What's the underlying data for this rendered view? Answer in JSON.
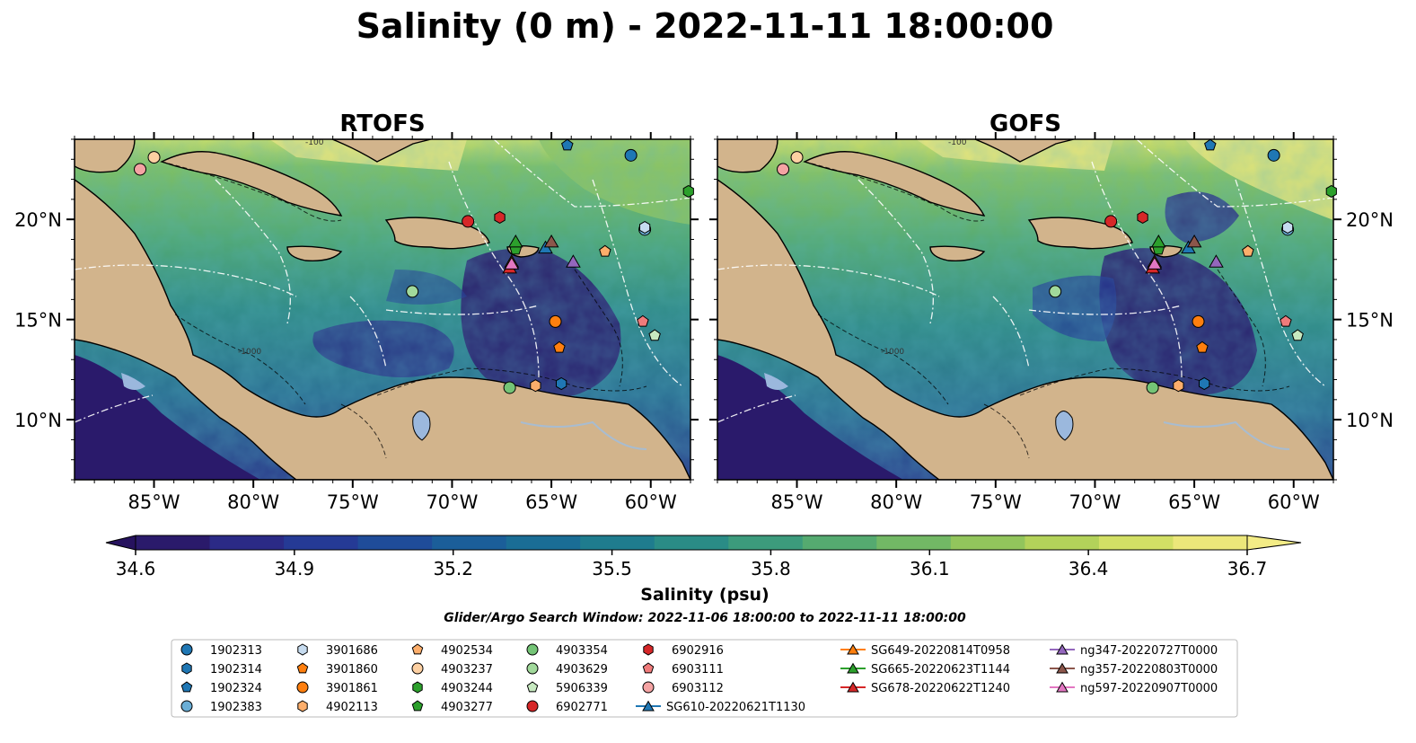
{
  "figure": {
    "title": "Salinity (0 m) - 2022-11-11 18:00:00",
    "search_window": "Glider/Argo Search Window: 2022-11-06 18:00:00 to 2022-11-11 18:00:00"
  },
  "panels": [
    {
      "title": "RTOFS"
    },
    {
      "title": "GOFS"
    }
  ],
  "axes": {
    "lon_ticks": [
      "85°W",
      "80°W",
      "75°W",
      "70°W",
      "65°W",
      "60°W"
    ],
    "lat_ticks": [
      "20°N",
      "15°N",
      "10°N"
    ],
    "lon_range": [
      -89,
      -58
    ],
    "lat_range": [
      7,
      24
    ]
  },
  "contour_labels": [
    "-100",
    "-1000"
  ],
  "colorbar": {
    "label": "Salinity (psu)",
    "ticks": [
      "34.6",
      "34.9",
      "35.2",
      "35.5",
      "35.8",
      "36.1",
      "36.4",
      "36.7"
    ],
    "min": 34.6,
    "max": 36.7,
    "extend": "both",
    "colors": [
      "#2a1a6b",
      "#2b2a86",
      "#253a95",
      "#1f4c99",
      "#1b5e99",
      "#1a6d95",
      "#1f7c8e",
      "#2a8c86",
      "#3c9b7c",
      "#55aa70",
      "#72b865",
      "#92c55c",
      "#b3d25a",
      "#d2df65",
      "#ece77a"
    ]
  },
  "colors": {
    "land": "#d2b48c",
    "lakes": "#9bb8dd",
    "rivers": "#a8bcd0"
  },
  "floats": [
    {
      "id": "1902313",
      "marker": "circle",
      "color": "#1f77b4",
      "lon": -61,
      "lat": 23.2
    },
    {
      "id": "1902314",
      "marker": "hexagon",
      "color": "#1f77b4",
      "lon": -64.5,
      "lat": 11.8
    },
    {
      "id": "1902324",
      "marker": "pentagon",
      "color": "#1f77b4",
      "lon": -64.2,
      "lat": 23.7
    },
    {
      "id": "1902383",
      "marker": "circle",
      "color": "#6aaed6",
      "lon": -60.3,
      "lat": 19.5
    },
    {
      "id": "3901686",
      "marker": "hexagon",
      "color": "#c6dbef",
      "lon": -60.3,
      "lat": 19.6
    },
    {
      "id": "3901860",
      "marker": "pentagon",
      "color": "#ff7f0e",
      "lon": -64.6,
      "lat": 13.6
    },
    {
      "id": "3901861",
      "marker": "circle",
      "color": "#ff7f0e",
      "lon": -64.8,
      "lat": 14.9
    },
    {
      "id": "4902113",
      "marker": "hexagon",
      "color": "#fdae6b",
      "lon": -65.8,
      "lat": 11.7
    },
    {
      "id": "4902534",
      "marker": "pentagon",
      "color": "#fdae6b",
      "lon": -62.3,
      "lat": 18.4
    },
    {
      "id": "4903237",
      "marker": "circle",
      "color": "#fdd0a2",
      "lon": -85,
      "lat": 23.1
    },
    {
      "id": "4903244",
      "marker": "hexagon",
      "color": "#2ca02c",
      "lon": -58.1,
      "lat": 21.4
    },
    {
      "id": "4903277",
      "marker": "pentagon",
      "color": "#2ca02c",
      "lon": -66.8,
      "lat": 18.5
    },
    {
      "id": "4903354",
      "marker": "circle",
      "color": "#74c476",
      "lon": -67.1,
      "lat": 11.6
    },
    {
      "id": "4903629",
      "marker": "circle",
      "color": "#a1d99b",
      "lon": -72.0,
      "lat": 16.4
    },
    {
      "id": "5906339",
      "marker": "pentagon",
      "color": "#c7e9c0",
      "lon": -59.8,
      "lat": 14.2
    },
    {
      "id": "6902771",
      "marker": "circle",
      "color": "#d62728",
      "lon": -69.2,
      "lat": 19.9
    },
    {
      "id": "6902916",
      "marker": "hexagon",
      "color": "#d62728",
      "lon": -67.6,
      "lat": 20.1
    },
    {
      "id": "6903111",
      "marker": "pentagon",
      "color": "#f07b7b",
      "lon": -60.4,
      "lat": 14.9
    },
    {
      "id": "6903112",
      "marker": "circle",
      "color": "#f4a3a3",
      "lon": -85.7,
      "lat": 22.5
    }
  ],
  "gliders": [
    {
      "id": "SG610-20220621T1130",
      "color": "#1f77b4",
      "lon": -65.3,
      "lat": 18.6
    },
    {
      "id": "SG649-20220814T0958",
      "color": "#ff7f0e",
      "lon": -67.0,
      "lat": 17.9
    },
    {
      "id": "SG665-20220623T1144",
      "color": "#2ca02c",
      "lon": -66.8,
      "lat": 18.9
    },
    {
      "id": "SG678-20220622T1240",
      "color": "#d62728",
      "lon": -67.1,
      "lat": 17.6
    },
    {
      "id": "ng347-20220727T0000",
      "color": "#9467bd",
      "lon": -63.9,
      "lat": 17.9
    },
    {
      "id": "ng357-20220803T0000",
      "color": "#8c564b",
      "lon": -65.0,
      "lat": 18.9
    },
    {
      "id": "ng597-20220907T0000",
      "color": "#e377c2",
      "lon": -67.0,
      "lat": 17.8
    }
  ]
}
